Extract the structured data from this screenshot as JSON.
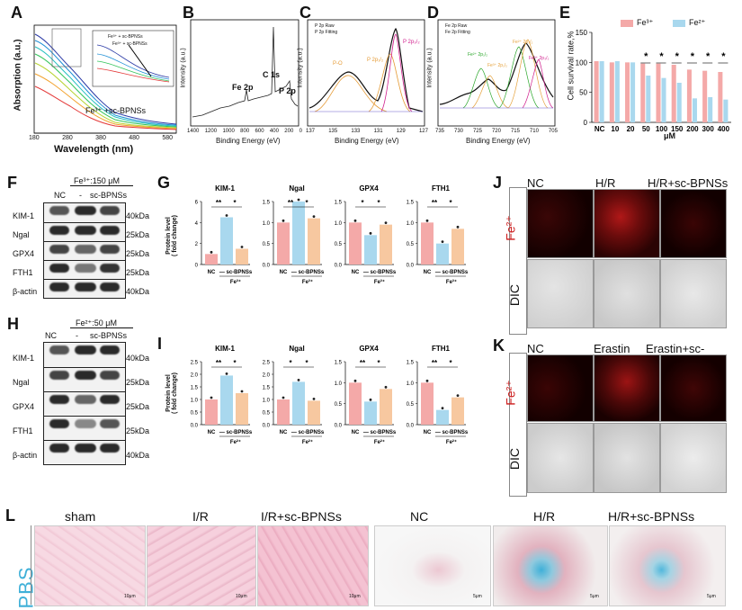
{
  "panels": {
    "A": {
      "letter": "A",
      "ylabel": "Absorption (a.u.)",
      "xlabel": "Wavelength (nm)",
      "xticks": [
        "180",
        "280",
        "380",
        "480",
        "580"
      ],
      "legend": "Fe³⁺ +sc-BPNSs",
      "inset_labels": [
        "Fe³⁺ + sc-BPNSs",
        "Fe³⁺ + sc-BPNSs"
      ]
    },
    "B": {
      "letter": "B",
      "ylabel": "Intensity (a.u.)",
      "xlabel": "Binding Energy (eV)",
      "xticks": [
        "1400",
        "1200",
        "1000",
        "800",
        "600",
        "400",
        "200",
        "0"
      ],
      "peaks": [
        "Fe 2p",
        "C 1s",
        "P 2p"
      ]
    },
    "C": {
      "letter": "C",
      "ylabel": "Intensity (a.u.)",
      "xlabel": "Binding Energy (eV)",
      "xticks": [
        "137",
        "135",
        "133",
        "131",
        "129",
        "127"
      ],
      "legend": [
        "P 2p Raw",
        "P 2p Fitting"
      ],
      "peaks": [
        "P-O",
        "P 2p₁/₂",
        "P 2p₃/₂"
      ]
    },
    "D": {
      "letter": "D",
      "ylabel": "Intensity (a.u.)",
      "xlabel": "Binding Energy (eV)",
      "xticks": [
        "735",
        "730",
        "725",
        "720",
        "715",
        "710",
        "705"
      ],
      "legend": [
        "Fe 2p Raw",
        "Fe 2p Fitting"
      ],
      "peaks": [
        "Fe²⁺ 2p₁/₂",
        "Fe³⁺ 2p₁/₂",
        "Fe²⁺ 2p₃/₂",
        "Fe³⁺ 2p₃/₂"
      ]
    },
    "E": {
      "letter": "E",
      "ylabel": "Cell survival rate,%",
      "xlabel": "μM",
      "legend": [
        "Fe³⁺",
        "Fe²⁺"
      ]
    },
    "F": {
      "letter": "F",
      "treatment": "Fe³⁺:150 μM",
      "cols": [
        "NC",
        "-",
        "sc-BPNSs"
      ],
      "rows": [
        "KIM-1",
        "Ngal",
        "GPX4",
        "FTH1",
        "β-actin"
      ],
      "kda": [
        "40kDa",
        "25kDa",
        "25kDa",
        "25kDa",
        "40kDa"
      ]
    },
    "G": {
      "letter": "G",
      "ylabel": "Protein level\n( fold change)",
      "group": "Fe³⁺"
    },
    "H": {
      "letter": "H",
      "treatment": "Fe²⁺:50 μM",
      "cols": [
        "NC",
        "-",
        "sc-BPNSs"
      ],
      "rows": [
        "KIM-1",
        "Ngal",
        "GPX4",
        "FTH1",
        "β-actin"
      ],
      "kda": [
        "40kDa",
        "25kDa",
        "25kDa",
        "25kDa",
        "40kDa"
      ]
    },
    "I": {
      "letter": "I",
      "ylabel": "Protein level\n( fold change)",
      "group": "Fe²⁺"
    },
    "J": {
      "letter": "J",
      "cols": [
        "NC",
        "H/R",
        "H/R+sc-BPNSs"
      ],
      "rows": [
        "Fe²⁺",
        "DIC"
      ]
    },
    "K": {
      "letter": "K",
      "cols": [
        "NC",
        "Erastin",
        "Erastin+sc-BPNSs"
      ],
      "rows": [
        "Fe²⁺",
        "DIC"
      ]
    },
    "L": {
      "letter": "L",
      "stain": "PBS",
      "cols_left": [
        "sham",
        "I/R",
        "I/R+sc-BPNSs"
      ],
      "cols_right": [
        "NC",
        "H/R",
        "H/R+sc-BPNSs"
      ],
      "scale_left": "10μm",
      "scale_right": "5μm"
    }
  },
  "colors": {
    "pink": "#f4a9a8",
    "blue": "#a9d8ee",
    "peach": "#f7c8a0",
    "red": "#cc1a1a",
    "cyan": "#3fb0d8"
  },
  "chart_data": [
    {
      "type": "line",
      "panel": "A",
      "title": "",
      "xlabel": "Wavelength (nm)",
      "ylabel": "Absorption (a.u.)",
      "xlim": [
        180,
        580
      ]
    },
    {
      "type": "line",
      "panel": "B",
      "xlabel": "Binding Energy (eV)",
      "ylabel": "Intensity (a.u.)",
      "xlim": [
        1400,
        0
      ]
    },
    {
      "type": "line",
      "panel": "C",
      "xlabel": "Binding Energy (eV)",
      "ylabel": "Intensity (a.u.)",
      "xlim": [
        137,
        127
      ]
    },
    {
      "type": "line",
      "panel": "D",
      "xlabel": "Binding Energy (eV)",
      "ylabel": "Intensity (a.u.)",
      "xlim": [
        735,
        705
      ]
    },
    {
      "type": "bar",
      "panel": "E",
      "xlabel": "μM",
      "ylabel": "Cell survival rate,%",
      "categories": [
        "NC",
        "10",
        "20",
        "50",
        "100",
        "150",
        "200",
        "300",
        "400"
      ],
      "series": [
        {
          "name": "Fe³⁺",
          "values": [
            102,
            100,
            100,
            98,
            98,
            96,
            88,
            86,
            84
          ]
        },
        {
          "name": "Fe²⁺",
          "values": [
            102,
            102,
            100,
            78,
            74,
            66,
            40,
            42,
            38
          ]
        }
      ],
      "significance": [
        "",
        "",
        "",
        "*",
        "*",
        "*",
        "*",
        "*",
        "*"
      ],
      "ylim": [
        0,
        150
      ],
      "yticks": [
        "0",
        "50",
        "100",
        "150"
      ]
    },
    {
      "type": "bar",
      "panel": "G",
      "group": "Fe³⁺",
      "subcharts": [
        {
          "title": "KIM-1",
          "categories": [
            "NC",
            "—",
            "sc-BPNSs"
          ],
          "values": [
            1.0,
            4.5,
            1.5
          ],
          "ylim": [
            0,
            6
          ],
          "yticks": [
            "0",
            "2",
            "4",
            "6"
          ],
          "sig": [
            "**",
            "*"
          ]
        },
        {
          "title": "Ngal",
          "categories": [
            "NC",
            "—",
            "sc-BPNSs"
          ],
          "values": [
            1.0,
            1.5,
            1.1
          ],
          "ylim": [
            0,
            1.5
          ],
          "yticks": [
            "0.0",
            "0.5",
            "1.0",
            "1.5"
          ],
          "sig": [
            "**",
            "*"
          ]
        },
        {
          "title": "GPX4",
          "categories": [
            "NC",
            "—",
            "sc-BPNSs"
          ],
          "values": [
            1.0,
            0.7,
            0.95
          ],
          "ylim": [
            0,
            1.5
          ],
          "yticks": [
            "0.0",
            "0.5",
            "1.0",
            "1.5"
          ],
          "sig": [
            "*",
            "*"
          ]
        },
        {
          "title": "FTH1",
          "categories": [
            "NC",
            "—",
            "sc-BPNSs"
          ],
          "values": [
            1.0,
            0.5,
            0.85
          ],
          "ylim": [
            0,
            1.5
          ],
          "yticks": [
            "0.0",
            "0.5",
            "1.0",
            "1.5"
          ],
          "sig": [
            "**",
            "*"
          ]
        }
      ]
    },
    {
      "type": "bar",
      "panel": "I",
      "group": "Fe²⁺",
      "subcharts": [
        {
          "title": "KIM-1",
          "categories": [
            "NC",
            "—",
            "sc-BPNSs"
          ],
          "values": [
            1.0,
            1.95,
            1.25
          ],
          "ylim": [
            0,
            2.5
          ],
          "yticks": [
            "0.0",
            "0.5",
            "1.0",
            "1.5",
            "2.0",
            "2.5"
          ],
          "sig": [
            "**",
            "*"
          ]
        },
        {
          "title": "Ngal",
          "categories": [
            "NC",
            "—",
            "sc-BPNSs"
          ],
          "values": [
            1.0,
            1.7,
            0.95
          ],
          "ylim": [
            0,
            2.5
          ],
          "yticks": [
            "0.0",
            "0.5",
            "1.0",
            "1.5",
            "2.0",
            "2.5"
          ],
          "sig": [
            "*",
            "*"
          ]
        },
        {
          "title": "GPX4",
          "categories": [
            "NC",
            "—",
            "sc-BPNSs"
          ],
          "values": [
            1.0,
            0.55,
            0.85
          ],
          "ylim": [
            0,
            1.5
          ],
          "yticks": [
            "0.0",
            "0.5",
            "1.0",
            "1.5"
          ],
          "sig": [
            "**",
            "*"
          ]
        },
        {
          "title": "FTH1",
          "categories": [
            "NC",
            "—",
            "sc-BPNSs"
          ],
          "values": [
            1.0,
            0.35,
            0.65
          ],
          "ylim": [
            0,
            1.5
          ],
          "yticks": [
            "0.0",
            "0.5",
            "1.0",
            "1.5"
          ],
          "sig": [
            "**",
            "*"
          ]
        }
      ]
    }
  ]
}
